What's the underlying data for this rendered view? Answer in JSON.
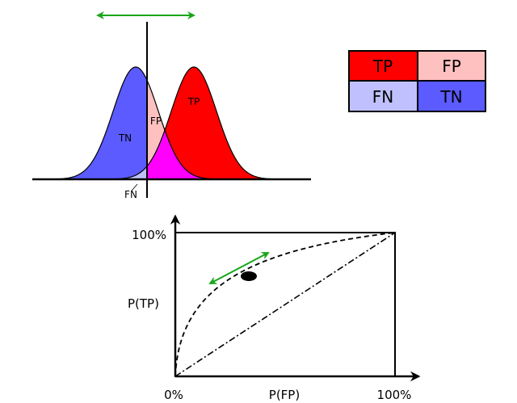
{
  "distributions": {
    "labels": {
      "tn": "TN",
      "fp": "FP",
      "tp": "TP",
      "fn": "FN"
    }
  },
  "legend": {
    "cells": [
      {
        "label": "TP",
        "color": "#ff0000"
      },
      {
        "label": "FP",
        "color": "#ffc0c0"
      },
      {
        "label": "FN",
        "color": "#c0c0ff"
      },
      {
        "label": "TN",
        "color": "#5b5bff"
      }
    ]
  },
  "roc": {
    "y_top_label": "100%",
    "y_axis_label": "P(TP)",
    "x_origin_label": "0%",
    "x_axis_label": "P(FP)",
    "x_right_label": "100%"
  },
  "colors": {
    "negative": "#5b5bff",
    "positive": "#ff0000",
    "false_positive": "#ffc0c0",
    "false_negative": "#c0c0ff",
    "overlap": "#ff00ff",
    "arrow": "#1aa51a"
  }
}
